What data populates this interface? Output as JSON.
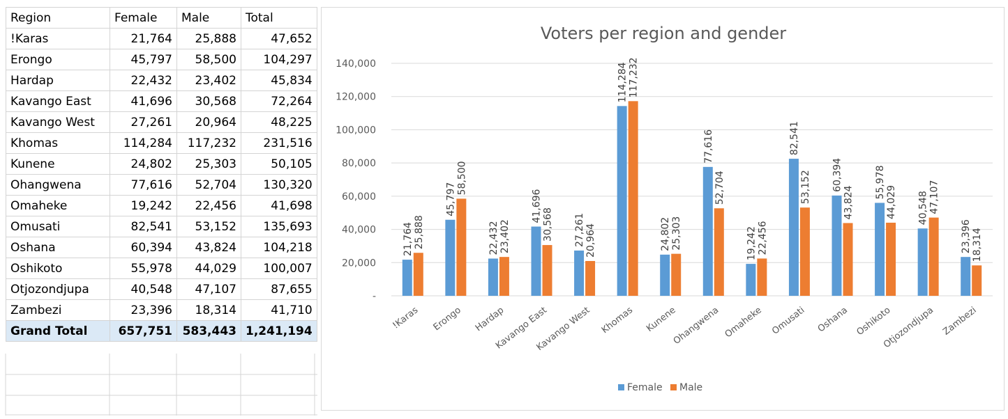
{
  "table": {
    "headers": [
      "Region",
      "Female",
      "Male",
      "Total"
    ],
    "rows": [
      [
        "!Karas",
        "21,764",
        "25,888",
        "47,652"
      ],
      [
        "Erongo",
        "45,797",
        "58,500",
        "104,297"
      ],
      [
        "Hardap",
        "22,432",
        "23,402",
        "45,834"
      ],
      [
        "Kavango East",
        "41,696",
        "30,568",
        "72,264"
      ],
      [
        "Kavango West",
        "27,261",
        "20,964",
        "48,225"
      ],
      [
        "Khomas",
        "114,284",
        "117,232",
        "231,516"
      ],
      [
        "Kunene",
        "24,802",
        "25,303",
        "50,105"
      ],
      [
        "Ohangwena",
        "77,616",
        "52,704",
        "130,320"
      ],
      [
        "Omaheke",
        "19,242",
        "22,456",
        "41,698"
      ],
      [
        "Omusati",
        "82,541",
        "53,152",
        "135,693"
      ],
      [
        "Oshana",
        "60,394",
        "43,824",
        "104,218"
      ],
      [
        "Oshikoto",
        "55,978",
        "44,029",
        "100,007"
      ],
      [
        "Otjozondjupa",
        "40,548",
        "47,107",
        "87,655"
      ],
      [
        "Zambezi",
        "23,396",
        "18,314",
        "41,710"
      ]
    ],
    "total": [
      "Grand Total",
      "657,751",
      "583,443",
      "1,241,194"
    ]
  },
  "chart_data": {
    "type": "bar",
    "title": "Voters per region and gender",
    "categories": [
      "!Karas",
      "Erongo",
      "Hardap",
      "Kavango East",
      "Kavango West",
      "Khomas",
      "Kunene",
      "Ohangwena",
      "Omaheke",
      "Omusati",
      "Oshana",
      "Oshikoto",
      "Otjozondjupa",
      "Zambezi"
    ],
    "series": [
      {
        "name": "Female",
        "color": "#5b9bd5",
        "values": [
          21764,
          45797,
          22432,
          41696,
          27261,
          114284,
          24802,
          77616,
          19242,
          82541,
          60394,
          55978,
          40548,
          23396
        ]
      },
      {
        "name": "Male",
        "color": "#ed7d31",
        "values": [
          25888,
          58500,
          23402,
          30568,
          20964,
          117232,
          25303,
          52704,
          22456,
          53152,
          43824,
          44029,
          47107,
          18314
        ]
      }
    ],
    "yticks": [
      0,
      20000,
      40000,
      60000,
      80000,
      100000,
      120000,
      140000
    ],
    "ytick_labels": [
      "-",
      "20,000",
      "40,000",
      "60,000",
      "80,000",
      "100,000",
      "120,000",
      "140,000"
    ],
    "ylim": [
      0,
      140000
    ],
    "grid": true,
    "legend": "bottom",
    "data_labels": true
  }
}
